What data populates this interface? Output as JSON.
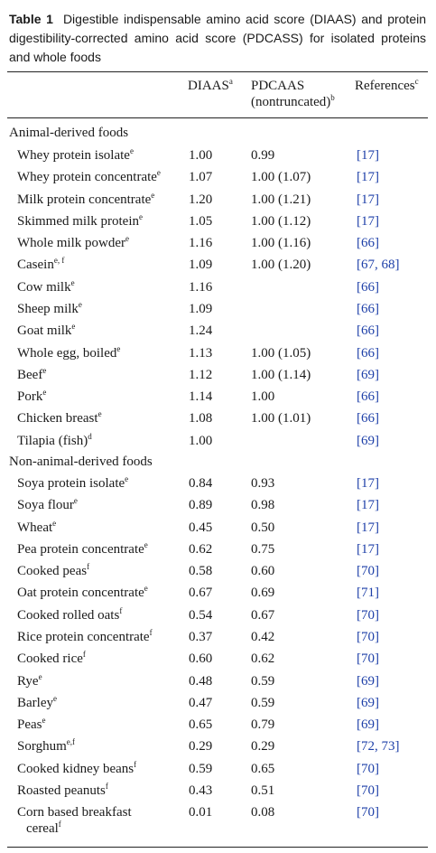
{
  "caption": {
    "label": "Table 1",
    "text": "Digestible indispensable amino acid score (DIAAS) and protein digestibility-corrected amino acid score (PDCASS) for isolated proteins and whole foods"
  },
  "columns": {
    "diaas": "DIAAS",
    "diaas_sup": "a",
    "pdcaas": "PDCAAS",
    "pdcaas_sub": "(nontruncated)",
    "pdcaas_sup": "b",
    "refs": "References",
    "refs_sup": "c"
  },
  "sections": [
    {
      "title": "Animal-derived foods",
      "rows": [
        {
          "food": "Whey protein isolate",
          "sup": "e",
          "diaas": "1.00",
          "pdcaas": "0.99",
          "refs": "[17]"
        },
        {
          "food": "Whey protein concentrate",
          "sup": "e",
          "diaas": "1.07",
          "pdcaas": "1.00 (1.07)",
          "refs": "[17]"
        },
        {
          "food": "Milk protein concentrate",
          "sup": "e",
          "diaas": "1.20",
          "pdcaas": "1.00 (1.21)",
          "refs": "[17]"
        },
        {
          "food": "Skimmed milk protein",
          "sup": "e",
          "diaas": "1.05",
          "pdcaas": "1.00 (1.12)",
          "refs": "[17]"
        },
        {
          "food": "Whole milk powder",
          "sup": "e",
          "diaas": "1.16",
          "pdcaas": "1.00 (1.16)",
          "refs": "[66]"
        },
        {
          "food": "Casein",
          "sup": "e, f",
          "diaas": "1.09",
          "pdcaas": "1.00 (1.20)",
          "refs": "[67, 68]"
        },
        {
          "food": "Cow milk",
          "sup": "e",
          "diaas": "1.16",
          "pdcaas": "",
          "refs": "[66]"
        },
        {
          "food": "Sheep milk",
          "sup": "e",
          "diaas": "1.09",
          "pdcaas": "",
          "refs": "[66]"
        },
        {
          "food": "Goat milk",
          "sup": "e",
          "diaas": "1.24",
          "pdcaas": "",
          "refs": "[66]"
        },
        {
          "food": "Whole egg, boiled",
          "sup": "e",
          "diaas": "1.13",
          "pdcaas": "1.00 (1.05)",
          "refs": "[66]"
        },
        {
          "food": "Beef",
          "sup": "e",
          "diaas": "1.12",
          "pdcaas": "1.00 (1.14)",
          "refs": "[69]"
        },
        {
          "food": "Pork",
          "sup": "e",
          "diaas": "1.14",
          "pdcaas": "1.00",
          "refs": "[66]"
        },
        {
          "food": "Chicken breast",
          "sup": "e",
          "diaas": "1.08",
          "pdcaas": "1.00 (1.01)",
          "refs": "[66]"
        },
        {
          "food": "Tilapia (fish)",
          "sup": "d",
          "diaas": "1.00",
          "pdcaas": "",
          "refs": "[69]"
        }
      ]
    },
    {
      "title": "Non-animal-derived foods",
      "rows": [
        {
          "food": "Soya protein isolate",
          "sup": "e",
          "diaas": "0.84",
          "pdcaas": "0.93",
          "refs": "[17]"
        },
        {
          "food": "Soya flour",
          "sup": "e",
          "diaas": "0.89",
          "pdcaas": "0.98",
          "refs": "[17]"
        },
        {
          "food": "Wheat",
          "sup": "e",
          "diaas": "0.45",
          "pdcaas": "0.50",
          "refs": "[17]"
        },
        {
          "food": "Pea protein concentrate",
          "sup": "e",
          "diaas": "0.62",
          "pdcaas": "0.75",
          "refs": "[17]"
        },
        {
          "food": "Cooked peas",
          "sup": "f",
          "diaas": "0.58",
          "pdcaas": "0.60",
          "refs": "[70]"
        },
        {
          "food": "Oat protein concentrate",
          "sup": "e",
          "diaas": "0.67",
          "pdcaas": "0.69",
          "refs": "[71]"
        },
        {
          "food": "Cooked rolled oats",
          "sup": "f",
          "diaas": "0.54",
          "pdcaas": "0.67",
          "refs": "[70]"
        },
        {
          "food": "Rice protein concentrate",
          "sup": "f",
          "diaas": "0.37",
          "pdcaas": "0.42",
          "refs": "[70]"
        },
        {
          "food": "Cooked rice",
          "sup": "f",
          "diaas": "0.60",
          "pdcaas": "0.62",
          "refs": "[70]"
        },
        {
          "food": "Rye",
          "sup": "e",
          "diaas": "0.48",
          "pdcaas": "0.59",
          "refs": "[69]"
        },
        {
          "food": "Barley",
          "sup": "e",
          "diaas": "0.47",
          "pdcaas": "0.59",
          "refs": "[69]"
        },
        {
          "food": "Peas",
          "sup": "e",
          "diaas": "0.65",
          "pdcaas": "0.79",
          "refs": "[69]"
        },
        {
          "food": "Sorghum",
          "sup": "e,f",
          "diaas": "0.29",
          "pdcaas": "0.29",
          "refs": "[72, 73]"
        },
        {
          "food": "Cooked kidney beans",
          "sup": "f",
          "diaas": "0.59",
          "pdcaas": "0.65",
          "refs": "[70]"
        },
        {
          "food": "Roasted peanuts",
          "sup": "f",
          "diaas": "0.43",
          "pdcaas": "0.51",
          "refs": "[70]"
        },
        {
          "food": "Corn based breakfast",
          "food_cont": "cereal",
          "sup": "f",
          "diaas": "0.01",
          "pdcaas": "0.08",
          "refs": "[70]"
        }
      ]
    }
  ]
}
